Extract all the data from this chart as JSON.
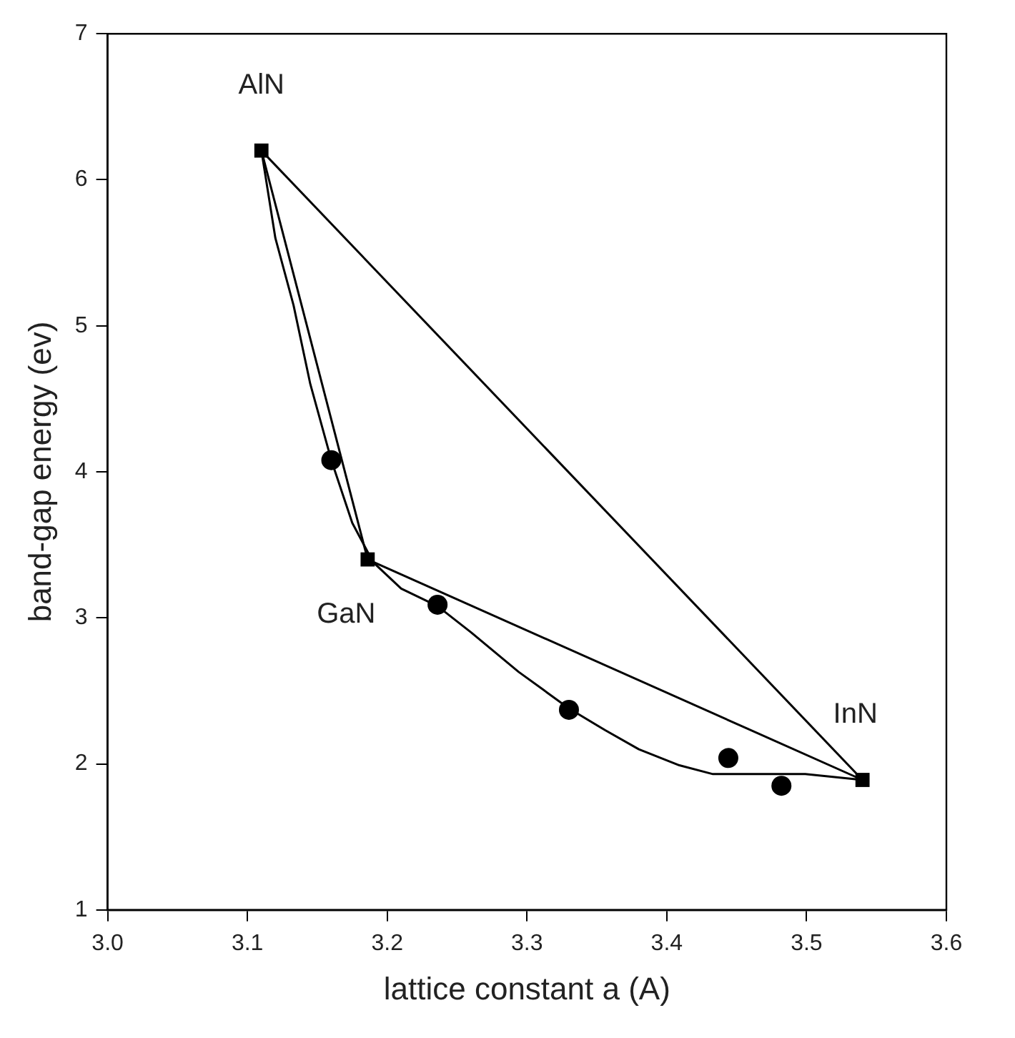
{
  "chart_data": {
    "type": "scatter",
    "xlabel": "lattice constant a (A)",
    "ylabel": "band-gap energy (ev)",
    "xlim": [
      3.0,
      3.6
    ],
    "ylim": [
      1,
      7
    ],
    "xticks": [
      {
        "value": 3.0,
        "label": "3.0"
      },
      3.1,
      3.2,
      3.3,
      3.4,
      3.5,
      3.6
    ],
    "yticks": [
      1,
      2,
      3,
      4,
      5,
      6,
      7
    ],
    "grid": false,
    "legend": false,
    "series": [
      {
        "type": "line",
        "color": "#000000",
        "marker": "none",
        "x": [
          3.11,
          3.186
        ],
        "values": [
          6.2,
          3.4
        ]
      },
      {
        "type": "line",
        "color": "#000000",
        "marker": "none",
        "x": [
          3.11,
          3.12,
          3.133,
          3.145,
          3.16,
          3.175,
          3.19,
          3.21,
          3.236,
          3.26,
          3.294,
          3.33,
          3.356,
          3.38,
          3.409,
          3.433,
          3.47,
          3.499,
          3.54
        ],
        "values": [
          6.2,
          5.6,
          5.14,
          4.6,
          4.08,
          3.65,
          3.38,
          3.2,
          3.08,
          2.9,
          2.63,
          2.38,
          2.23,
          2.1,
          1.99,
          1.93,
          1.93,
          1.93,
          1.89
        ]
      },
      {
        "type": "line",
        "color": "#000000",
        "marker": "none",
        "x": [
          3.186,
          3.54
        ],
        "values": [
          3.4,
          1.89
        ]
      },
      {
        "type": "line",
        "color": "#000000",
        "marker": "none",
        "x": [
          3.11,
          3.54
        ],
        "values": [
          6.2,
          1.89
        ]
      },
      {
        "type": "scatter",
        "color": "#000000",
        "marker": "circle",
        "x": [
          3.16,
          3.236,
          3.33,
          3.444,
          3.482
        ],
        "values": [
          4.08,
          3.09,
          2.37,
          2.04,
          1.85
        ]
      },
      {
        "type": "scatter",
        "color": "#000000",
        "marker": "square",
        "x": [
          3.11,
          3.186,
          3.54
        ],
        "values": [
          6.2,
          3.4,
          1.89
        ]
      }
    ],
    "annotations": [
      {
        "text": "AlN",
        "x": 3.11,
        "y": 6.2
      },
      {
        "text": "GaN",
        "x": 3.186,
        "y": 3.4
      },
      {
        "text": "InN",
        "x": 3.54,
        "y": 1.89
      }
    ]
  }
}
